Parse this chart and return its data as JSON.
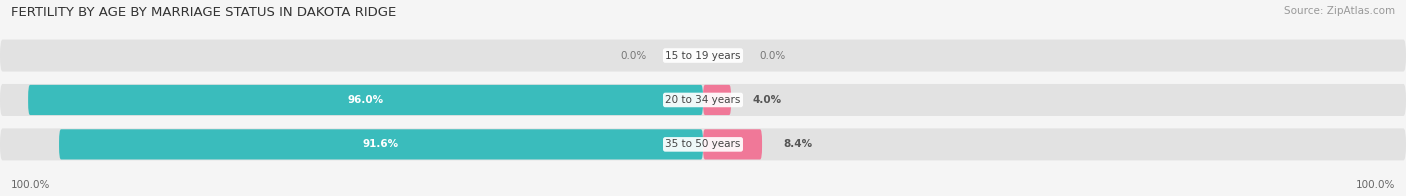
{
  "title": "FERTILITY BY AGE BY MARRIAGE STATUS IN DAKOTA RIDGE",
  "source": "Source: ZipAtlas.com",
  "categories": [
    "15 to 19 years",
    "20 to 34 years",
    "35 to 50 years"
  ],
  "married_values": [
    0.0,
    96.0,
    91.6
  ],
  "unmarried_values": [
    0.0,
    4.0,
    8.4
  ],
  "married_color": "#3abcbc",
  "unmarried_color": "#f07898",
  "bar_bg_color": "#e2e2e2",
  "title_fontsize": 9.5,
  "source_fontsize": 7.5,
  "label_fontsize": 7.5,
  "value_fontsize": 7.5,
  "legend_fontsize": 8.5,
  "background_color": "#f5f5f5",
  "left_label": "100.0%",
  "right_label": "100.0%"
}
